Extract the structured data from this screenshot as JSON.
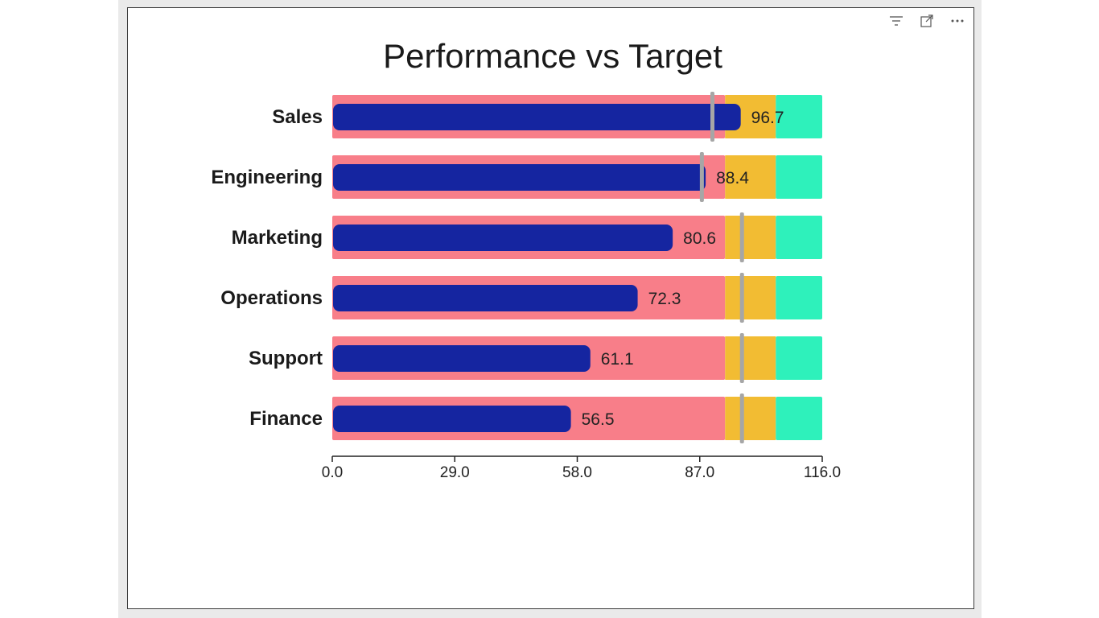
{
  "visual_header": {
    "icons": [
      "filter-icon",
      "focus-mode-icon",
      "more-options-icon"
    ]
  },
  "chart_data": {
    "type": "bullet",
    "title": "Performance vs Target",
    "categories": [
      "Sales",
      "Engineering",
      "Marketing",
      "Operations",
      "Support",
      "Finance"
    ],
    "values": [
      96.7,
      88.4,
      80.6,
      72.3,
      61.1,
      56.5
    ],
    "value_labels": [
      "96.7",
      "88.4",
      "80.6",
      "72.3",
      "61.1",
      "56.5"
    ],
    "targets": [
      90,
      87.5,
      97,
      97,
      97,
      97
    ],
    "bands": [
      {
        "to": 93,
        "color": "#f87e89"
      },
      {
        "to": 105,
        "color": "#f2bc33"
      },
      {
        "to": 116,
        "color": "#2ef1bb"
      }
    ],
    "xlim": [
      0,
      116
    ],
    "x_ticks": [
      "0.0",
      "29.0",
      "58.0",
      "87.0",
      "116.0"
    ],
    "colors": {
      "bar": "#1525a0",
      "target": "#a6a6a6",
      "axis": "#222222"
    }
  }
}
